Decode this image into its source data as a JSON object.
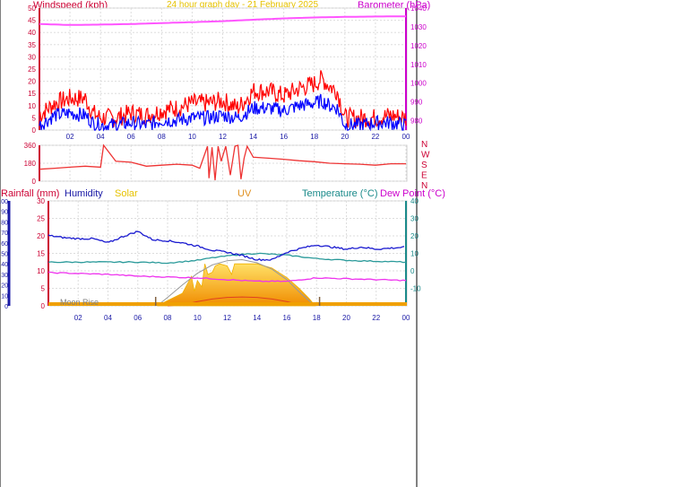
{
  "window": {
    "background": "#ffffff",
    "frame_color": "#000000"
  },
  "header": {
    "title": "24 hour graph day - 21 February 2025",
    "title_color": "#e6c200"
  },
  "time_axis": {
    "ticks": [
      "02",
      "04",
      "06",
      "08",
      "10",
      "12",
      "14",
      "16",
      "18",
      "20",
      "22",
      "00"
    ],
    "tick_color": "#1a1aa6"
  },
  "chart_data": [
    {
      "id": "wind-baro",
      "type": "line",
      "title": "",
      "x_range_hours": [
        0,
        24
      ],
      "left_axis": {
        "label": "Windspeed (kph)",
        "ticks": [
          "0",
          "5",
          "10",
          "15",
          "20",
          "25",
          "30",
          "35",
          "40",
          "45",
          "50"
        ],
        "range": [
          0,
          50
        ],
        "color": "#cc0033"
      },
      "right_axis": {
        "label": "Barometer (hPa)",
        "ticks": [
          "980",
          "990",
          "1000",
          "1010",
          "1020",
          "1030",
          "1040"
        ],
        "range": [
          975,
          1040
        ],
        "color": "#cc00cc"
      },
      "series": [
        {
          "name": "Barometer",
          "axis": "right",
          "color": "#ff55ff",
          "x": [
            0,
            2,
            4,
            6,
            8,
            10,
            12,
            14,
            16,
            18,
            20,
            22,
            24
          ],
          "y": [
            1031.5,
            1031.0,
            1031.2,
            1031.5,
            1032.0,
            1032.5,
            1033.0,
            1033.8,
            1034.5,
            1035.0,
            1035.3,
            1035.5,
            1035.6
          ]
        },
        {
          "name": "Gust",
          "axis": "left",
          "color": "#ff0000",
          "x": [
            0,
            1,
            2,
            3,
            3.5,
            4,
            5,
            6,
            7,
            8,
            9,
            10,
            11,
            12,
            13,
            14,
            15,
            16,
            17,
            18,
            18.5,
            19,
            19.5,
            20,
            21,
            22,
            23,
            24
          ],
          "y": [
            6,
            11,
            13,
            13,
            7,
            5,
            5,
            7,
            6,
            8,
            9,
            11,
            11,
            12,
            9,
            16,
            16,
            14,
            17,
            19,
            21,
            18,
            16,
            5,
            5,
            5,
            6,
            5
          ]
        },
        {
          "name": "Wind Speed",
          "axis": "left",
          "color": "#0000ff",
          "x": [
            0,
            1,
            2,
            3,
            3.5,
            4,
            5,
            6,
            7,
            8,
            9,
            10,
            11,
            12,
            13,
            14,
            15,
            16,
            17,
            18,
            18.5,
            19,
            19.5,
            20,
            21,
            22,
            23,
            24
          ],
          "y": [
            2,
            6,
            7,
            6,
            3,
            2,
            2,
            3,
            2,
            4,
            4,
            5,
            5,
            6,
            5,
            9,
            9,
            8,
            10,
            11,
            12,
            10,
            9,
            2,
            2,
            3,
            3,
            2
          ]
        }
      ]
    },
    {
      "id": "direction",
      "type": "line",
      "title": "",
      "x_range_hours": [
        0,
        24
      ],
      "left_axis": {
        "label": "",
        "ticks": [
          "0",
          "180",
          "360"
        ],
        "range": [
          0,
          360
        ],
        "color": "#cc0033"
      },
      "right_axis": {
        "label": "",
        "ticks": [
          "N",
          "W",
          "S",
          "E",
          "N"
        ],
        "color": "#cc0033"
      },
      "series": [
        {
          "name": "Wind Direction",
          "axis": "left",
          "color": "#ee3333",
          "x": [
            0,
            1,
            2,
            3,
            4,
            4.2,
            5,
            6,
            7,
            8,
            9,
            10,
            10.5,
            11,
            11.1,
            11.3,
            11.5,
            11.7,
            11.9,
            12.2,
            12.5,
            12.8,
            13,
            13.2,
            13.4,
            13.6,
            14,
            15,
            16,
            17,
            18,
            19,
            20,
            21,
            22,
            23,
            24
          ],
          "y": [
            120,
            130,
            140,
            150,
            140,
            360,
            200,
            190,
            150,
            160,
            170,
            160,
            130,
            350,
            30,
            340,
            10,
            350,
            200,
            350,
            60,
            350,
            360,
            20,
            230,
            350,
            240,
            230,
            220,
            205,
            195,
            180,
            175,
            170,
            160,
            175,
            175
          ]
        }
      ]
    },
    {
      "id": "weather",
      "type": "line",
      "title": "",
      "x_range_hours": [
        0,
        24
      ],
      "legend": [
        "Rainfall (mm)",
        "Humidity",
        "Solar",
        "UV",
        "Temperature (°C)",
        "Dew Point (°C)"
      ],
      "axes": {
        "humidity": {
          "ticks": [
            "0",
            "10",
            "20",
            "30",
            "40",
            "50",
            "60",
            "70",
            "80",
            "90",
            "100"
          ],
          "range": [
            0,
            100
          ],
          "color": "#1a1aa6"
        },
        "rainfall": {
          "ticks": [
            "0",
            "5",
            "10",
            "15",
            "20",
            "25",
            "30"
          ],
          "range": [
            0,
            30
          ],
          "color": "#cc0033"
        },
        "temperature": {
          "ticks": [
            "-10",
            "0",
            "10",
            "20",
            "30",
            "40"
          ],
          "range": [
            -20,
            40
          ],
          "color": "#1a8a8a"
        }
      },
      "annotations": {
        "moon_rise": "Moon Rise",
        "moon_rise_hour": 7.2,
        "moon_set_hour": 18.2
      },
      "series": [
        {
          "name": "Humidity",
          "axis": "humidity",
          "color": "#1a1ad0",
          "x": [
            0,
            1,
            2,
            3,
            4,
            5,
            6,
            6.5,
            7,
            8,
            9,
            10,
            11,
            12,
            13,
            14,
            15,
            16,
            17,
            18,
            19,
            20,
            21,
            22,
            23,
            24
          ],
          "y": [
            67,
            65,
            64,
            64,
            60,
            66,
            71,
            67,
            63,
            62,
            60,
            57,
            53,
            51,
            48,
            44,
            44,
            51,
            55,
            58,
            56,
            54,
            56,
            54,
            55,
            56
          ]
        },
        {
          "name": "Temperature",
          "axis": "temperature",
          "color": "#2a9a9a",
          "x": [
            0,
            2,
            4,
            6,
            8,
            10,
            11,
            12,
            13,
            14,
            16,
            18,
            20,
            22,
            24
          ],
          "y": [
            5,
            5,
            5,
            5,
            4.5,
            6,
            7.5,
            8.5,
            9.5,
            10,
            9,
            7,
            6,
            5.5,
            5
          ]
        },
        {
          "name": "Dew Point",
          "axis": "temperature",
          "color": "#ee33ee",
          "x": [
            0,
            2,
            4,
            6,
            8,
            10,
            12,
            14,
            16,
            18,
            20,
            22,
            24
          ],
          "y": [
            -1,
            -1.5,
            -2,
            -3,
            -3.5,
            -4,
            -5,
            -6,
            -6,
            -4,
            -4.5,
            -5,
            -5.5
          ]
        },
        {
          "name": "Solar",
          "axis": "solar",
          "color": "#f0b000",
          "x": [
            7.3,
            8,
            9,
            9.6,
            9.8,
            10,
            10.3,
            10.5,
            10.7,
            11,
            11.2,
            11.5,
            12,
            12.3,
            12.5,
            13,
            14,
            15,
            16,
            16.8,
            17.5,
            17.9
          ],
          "y": [
            0,
            5,
            12,
            28,
            14,
            24,
            18,
            40,
            30,
            32,
            38,
            40,
            38,
            30,
            40,
            40,
            40,
            36,
            27,
            17,
            7,
            0
          ]
        },
        {
          "name": "Solar Theoretical",
          "axis": "solar",
          "color": "#999999",
          "x": [
            7.3,
            8,
            9,
            10,
            11,
            12,
            13,
            14,
            15,
            16,
            17,
            17.9
          ],
          "y": [
            0,
            8,
            20,
            31,
            39,
            43,
            44,
            41,
            35,
            25,
            11,
            0
          ]
        },
        {
          "name": "UV",
          "axis": "solar",
          "color": "#e04020",
          "x": [
            8,
            9,
            10,
            11,
            12,
            13,
            14,
            15,
            16,
            17
          ],
          "y": [
            0,
            1,
            4,
            6.5,
            8,
            8.5,
            8,
            6.5,
            4,
            0.5
          ]
        }
      ]
    }
  ]
}
